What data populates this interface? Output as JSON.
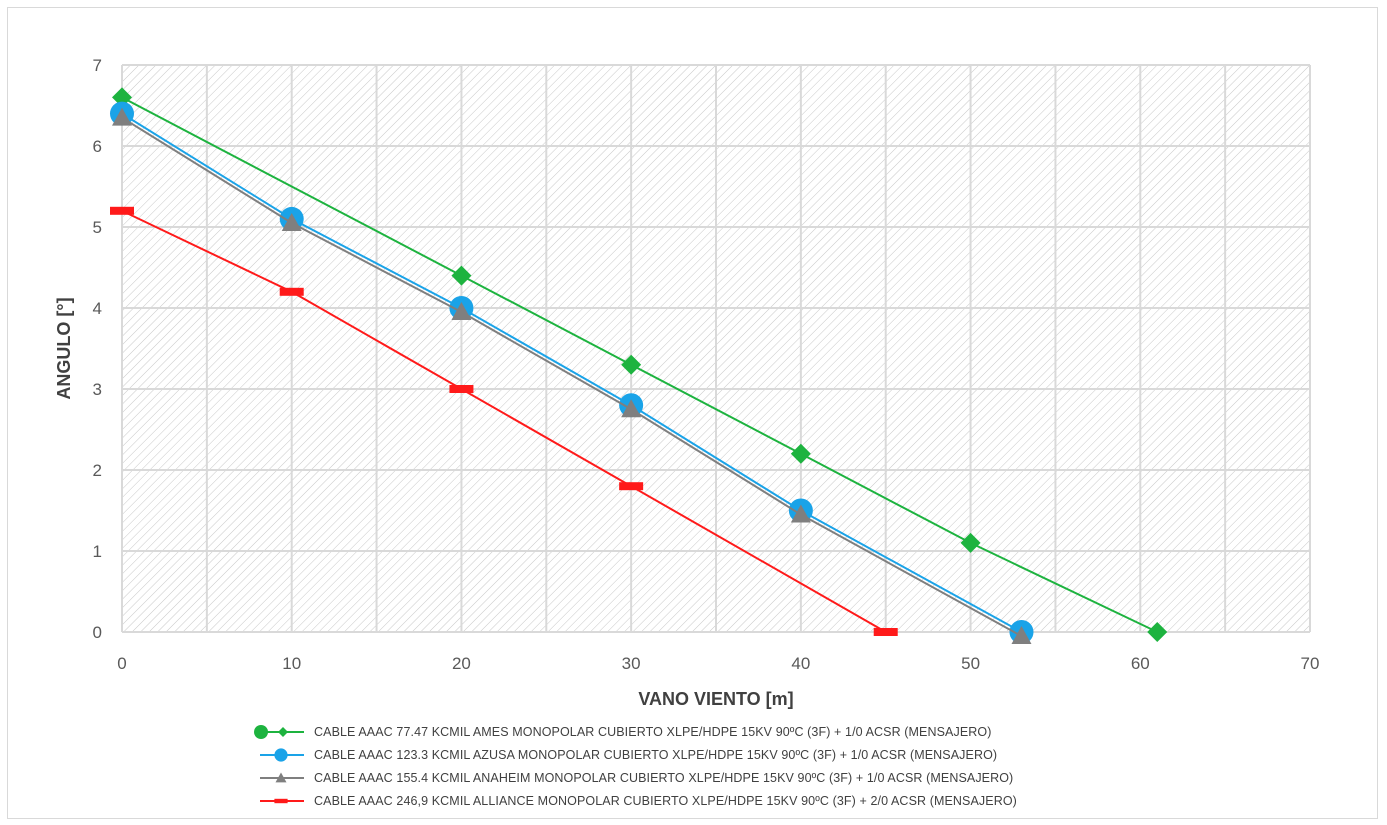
{
  "colors": {
    "series1": "#1db33f",
    "series2": "#1aa3e8",
    "series3": "#7f7f7f",
    "series4": "#ff1a1a",
    "grid": "#d9d9d9",
    "hatch": "#c8c8c8"
  },
  "chart_data": {
    "type": "line",
    "title": "",
    "xlabel": "VANO VIENTO [m]",
    "ylabel": "ANGULO [°]",
    "xlim": [
      0,
      70
    ],
    "ylim": [
      0,
      7
    ],
    "x_ticks": [
      "0",
      "10",
      "20",
      "30",
      "40",
      "50",
      "60",
      "70"
    ],
    "y_ticks": [
      "0",
      "1",
      "2",
      "3",
      "4",
      "5",
      "6",
      "7"
    ],
    "grid": true,
    "legend_position": "bottom",
    "series": [
      {
        "name": "CABLE AAAC 77.47 KCMIL AMES MONOPOLAR CUBIERTO XLPE/HDPE 15KV 90ºC (3F) + 1/0 ACSR  (MENSAJERO)",
        "marker": "diamond",
        "points": [
          [
            0,
            6.6
          ],
          [
            20,
            4.4
          ],
          [
            30,
            3.3
          ],
          [
            40,
            2.2
          ],
          [
            50,
            1.1
          ],
          [
            61,
            0
          ]
        ]
      },
      {
        "name": "CABLE AAAC 123.3 KCMIL AZUSA MONOPOLAR CUBIERTO XLPE/HDPE 15KV 90ºC (3F) + 1/0 ACSR  (MENSAJERO)",
        "marker": "circle",
        "points": [
          [
            0,
            6.4
          ],
          [
            10,
            5.1
          ],
          [
            20,
            4.0
          ],
          [
            30,
            2.8
          ],
          [
            40,
            1.5
          ],
          [
            53,
            0
          ]
        ]
      },
      {
        "name": "CABLE AAAC 155.4 KCMIL ANAHEIM  MONOPOLAR CUBIERTO XLPE/HDPE 15KV 90ºC (3F) + 1/0 ACSR  (MENSAJERO)",
        "marker": "triangle",
        "points": [
          [
            0,
            6.35
          ],
          [
            10,
            5.05
          ],
          [
            20,
            3.95
          ],
          [
            30,
            2.75
          ],
          [
            40,
            1.45
          ],
          [
            53,
            -0.05
          ]
        ]
      },
      {
        "name": "CABLE AAAC 246,9 KCMIL ALLIANCE MONOPOLAR CUBIERTO XLPE/HDPE 15KV 90ºC (3F) + 2/0 ACSR  (MENSAJERO)",
        "marker": "dash",
        "points": [
          [
            0,
            5.2
          ],
          [
            10,
            4.2
          ],
          [
            20,
            3.0
          ],
          [
            30,
            1.8
          ],
          [
            45,
            0
          ]
        ]
      }
    ]
  }
}
